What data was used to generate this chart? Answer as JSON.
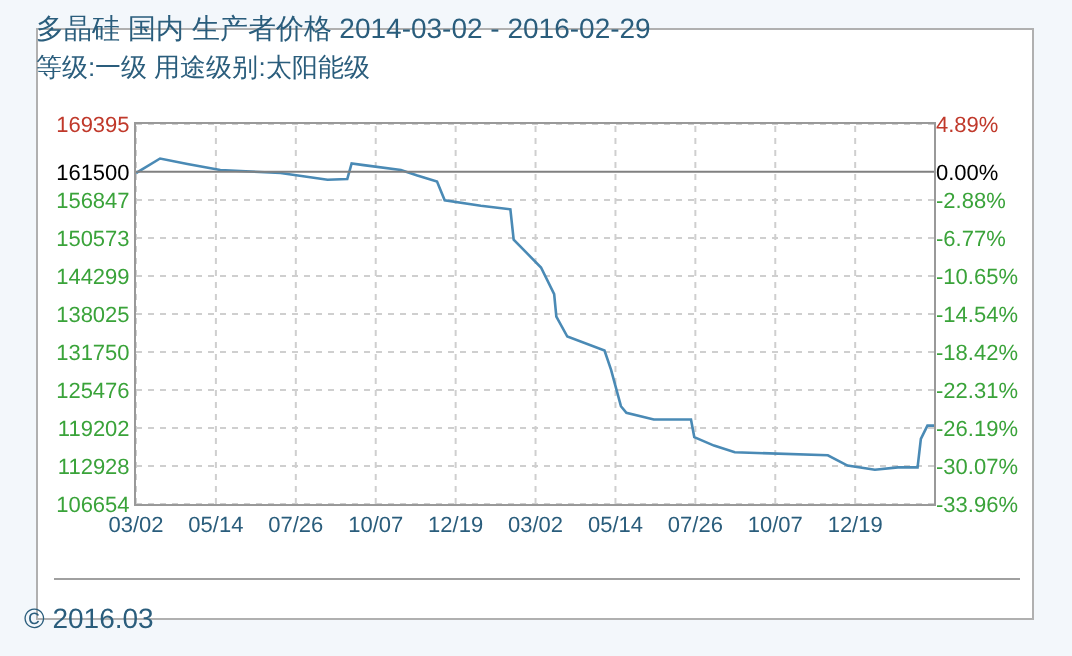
{
  "chart_data": {
    "type": "line",
    "title": "多晶硅 国内 生产者价格 2014-03-02 - 2016-02-29",
    "subtitle": "等级:一级 用途级别:太阳能级",
    "x": [
      "2014-03-02",
      "2014-03-24",
      "2014-04-18",
      "2014-05-18",
      "2014-07-12",
      "2014-08-24",
      "2014-09-11",
      "2014-09-15",
      "2014-09-26",
      "2014-10-30",
      "2014-11-14",
      "2014-12-02",
      "2014-12-09",
      "2015-01-11",
      "2015-02-07",
      "2015-02-10",
      "2015-02-23",
      "2015-03-07",
      "2015-03-19",
      "2015-03-21",
      "2015-03-31",
      "2015-05-04",
      "2015-05-10",
      "2015-05-19",
      "2015-05-24",
      "2015-06-18",
      "2015-07-22",
      "2015-07-25",
      "2015-08-12",
      "2015-08-31",
      "2015-11-24",
      "2015-12-12",
      "2016-01-06",
      "2016-01-27",
      "2016-02-14",
      "2016-02-17",
      "2016-02-23",
      "2016-02-29"
    ],
    "series": [
      {
        "color": "#4a8ab5",
        "values": [
          161300,
          163700,
          162800,
          161800,
          161300,
          160200,
          160300,
          162900,
          162600,
          161800,
          160900,
          159900,
          156800,
          155900,
          155300,
          150300,
          147900,
          145700,
          141300,
          137600,
          134300,
          132000,
          128800,
          122800,
          121700,
          120600,
          120600,
          117700,
          116300,
          115200,
          114700,
          113000,
          112300,
          112700,
          112700,
          117400,
          119600,
          119600
        ]
      }
    ],
    "xlim": [
      "2014-03-02",
      "2016-02-29"
    ],
    "xticks": [
      {
        "value": "2014-03-02",
        "label": "03/02"
      },
      {
        "value": "2014-05-14",
        "label": "05/14"
      },
      {
        "value": "2014-07-26",
        "label": "07/26"
      },
      {
        "value": "2014-10-07",
        "label": "10/07"
      },
      {
        "value": "2014-12-19",
        "label": "12/19"
      },
      {
        "value": "2015-03-02",
        "label": "03/02"
      },
      {
        "value": "2015-05-14",
        "label": "05/14"
      },
      {
        "value": "2015-07-26",
        "label": "07/26"
      },
      {
        "value": "2015-10-07",
        "label": "10/07"
      },
      {
        "value": "2015-12-19",
        "label": "12/19"
      }
    ],
    "ylim": [
      106654,
      169395
    ],
    "yticks": [
      169395,
      161500,
      156847,
      150573,
      144299,
      138025,
      131750,
      125476,
      119202,
      112928,
      106654
    ],
    "y2lim": [
      -33.96,
      4.89
    ],
    "y2ticks": [
      {
        "value": 4.89,
        "label": "4.89%"
      },
      {
        "value": 0,
        "label": "0.00%"
      },
      {
        "value": -2.88,
        "label": "-2.88%"
      },
      {
        "value": -6.77,
        "label": "-6.77%"
      },
      {
        "value": -10.65,
        "label": "-10.65%"
      },
      {
        "value": -14.54,
        "label": "-14.54%"
      },
      {
        "value": -18.42,
        "label": "-18.42%"
      },
      {
        "value": -22.31,
        "label": "-22.31%"
      },
      {
        "value": -26.19,
        "label": "-26.19%"
      },
      {
        "value": -30.07,
        "label": "-30.07%"
      },
      {
        "value": -33.96,
        "label": "-33.96%"
      }
    ],
    "ref_lines": [
      {
        "axis": "y",
        "value": 161500,
        "color": "#808080"
      }
    ],
    "grid": true,
    "line_style": "solid",
    "annotations": [
      "© 2016.03"
    ]
  }
}
